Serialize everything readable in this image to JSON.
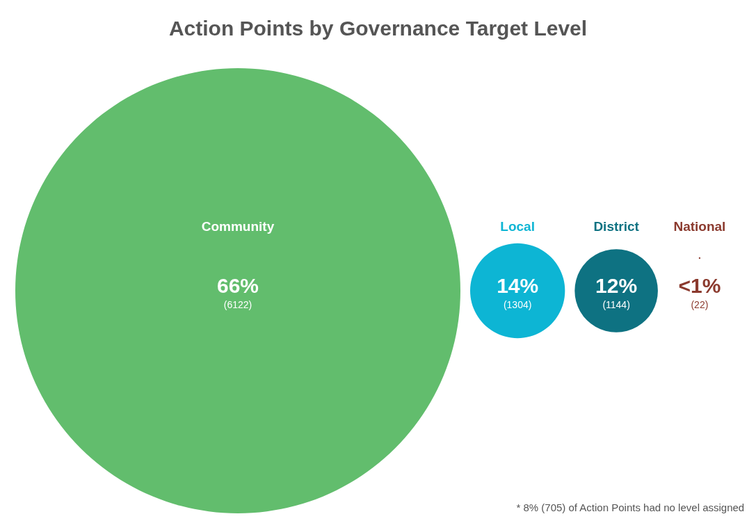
{
  "chart_data": {
    "type": "other",
    "title": "Action Points by Governance Target Level",
    "categories": [
      "Community",
      "Local",
      "District",
      "National"
    ],
    "values": [
      6122,
      1304,
      1144,
      22
    ],
    "value_labels": [
      "(6122)",
      "(1304)",
      "(1144)",
      "(22)"
    ],
    "colors": [
      "#62bd6d",
      "#0db5d4",
      "#0e7282",
      "#8b3a2e"
    ],
    "annotations": [
      {
        "text": "66%",
        "x": "Community"
      },
      {
        "text": "14%",
        "x": "Local"
      },
      {
        "text": "12%",
        "x": "District"
      },
      {
        "text": "<1%",
        "x": "National"
      },
      "* 8% (705) of Action Points had no level assigned"
    ]
  }
}
